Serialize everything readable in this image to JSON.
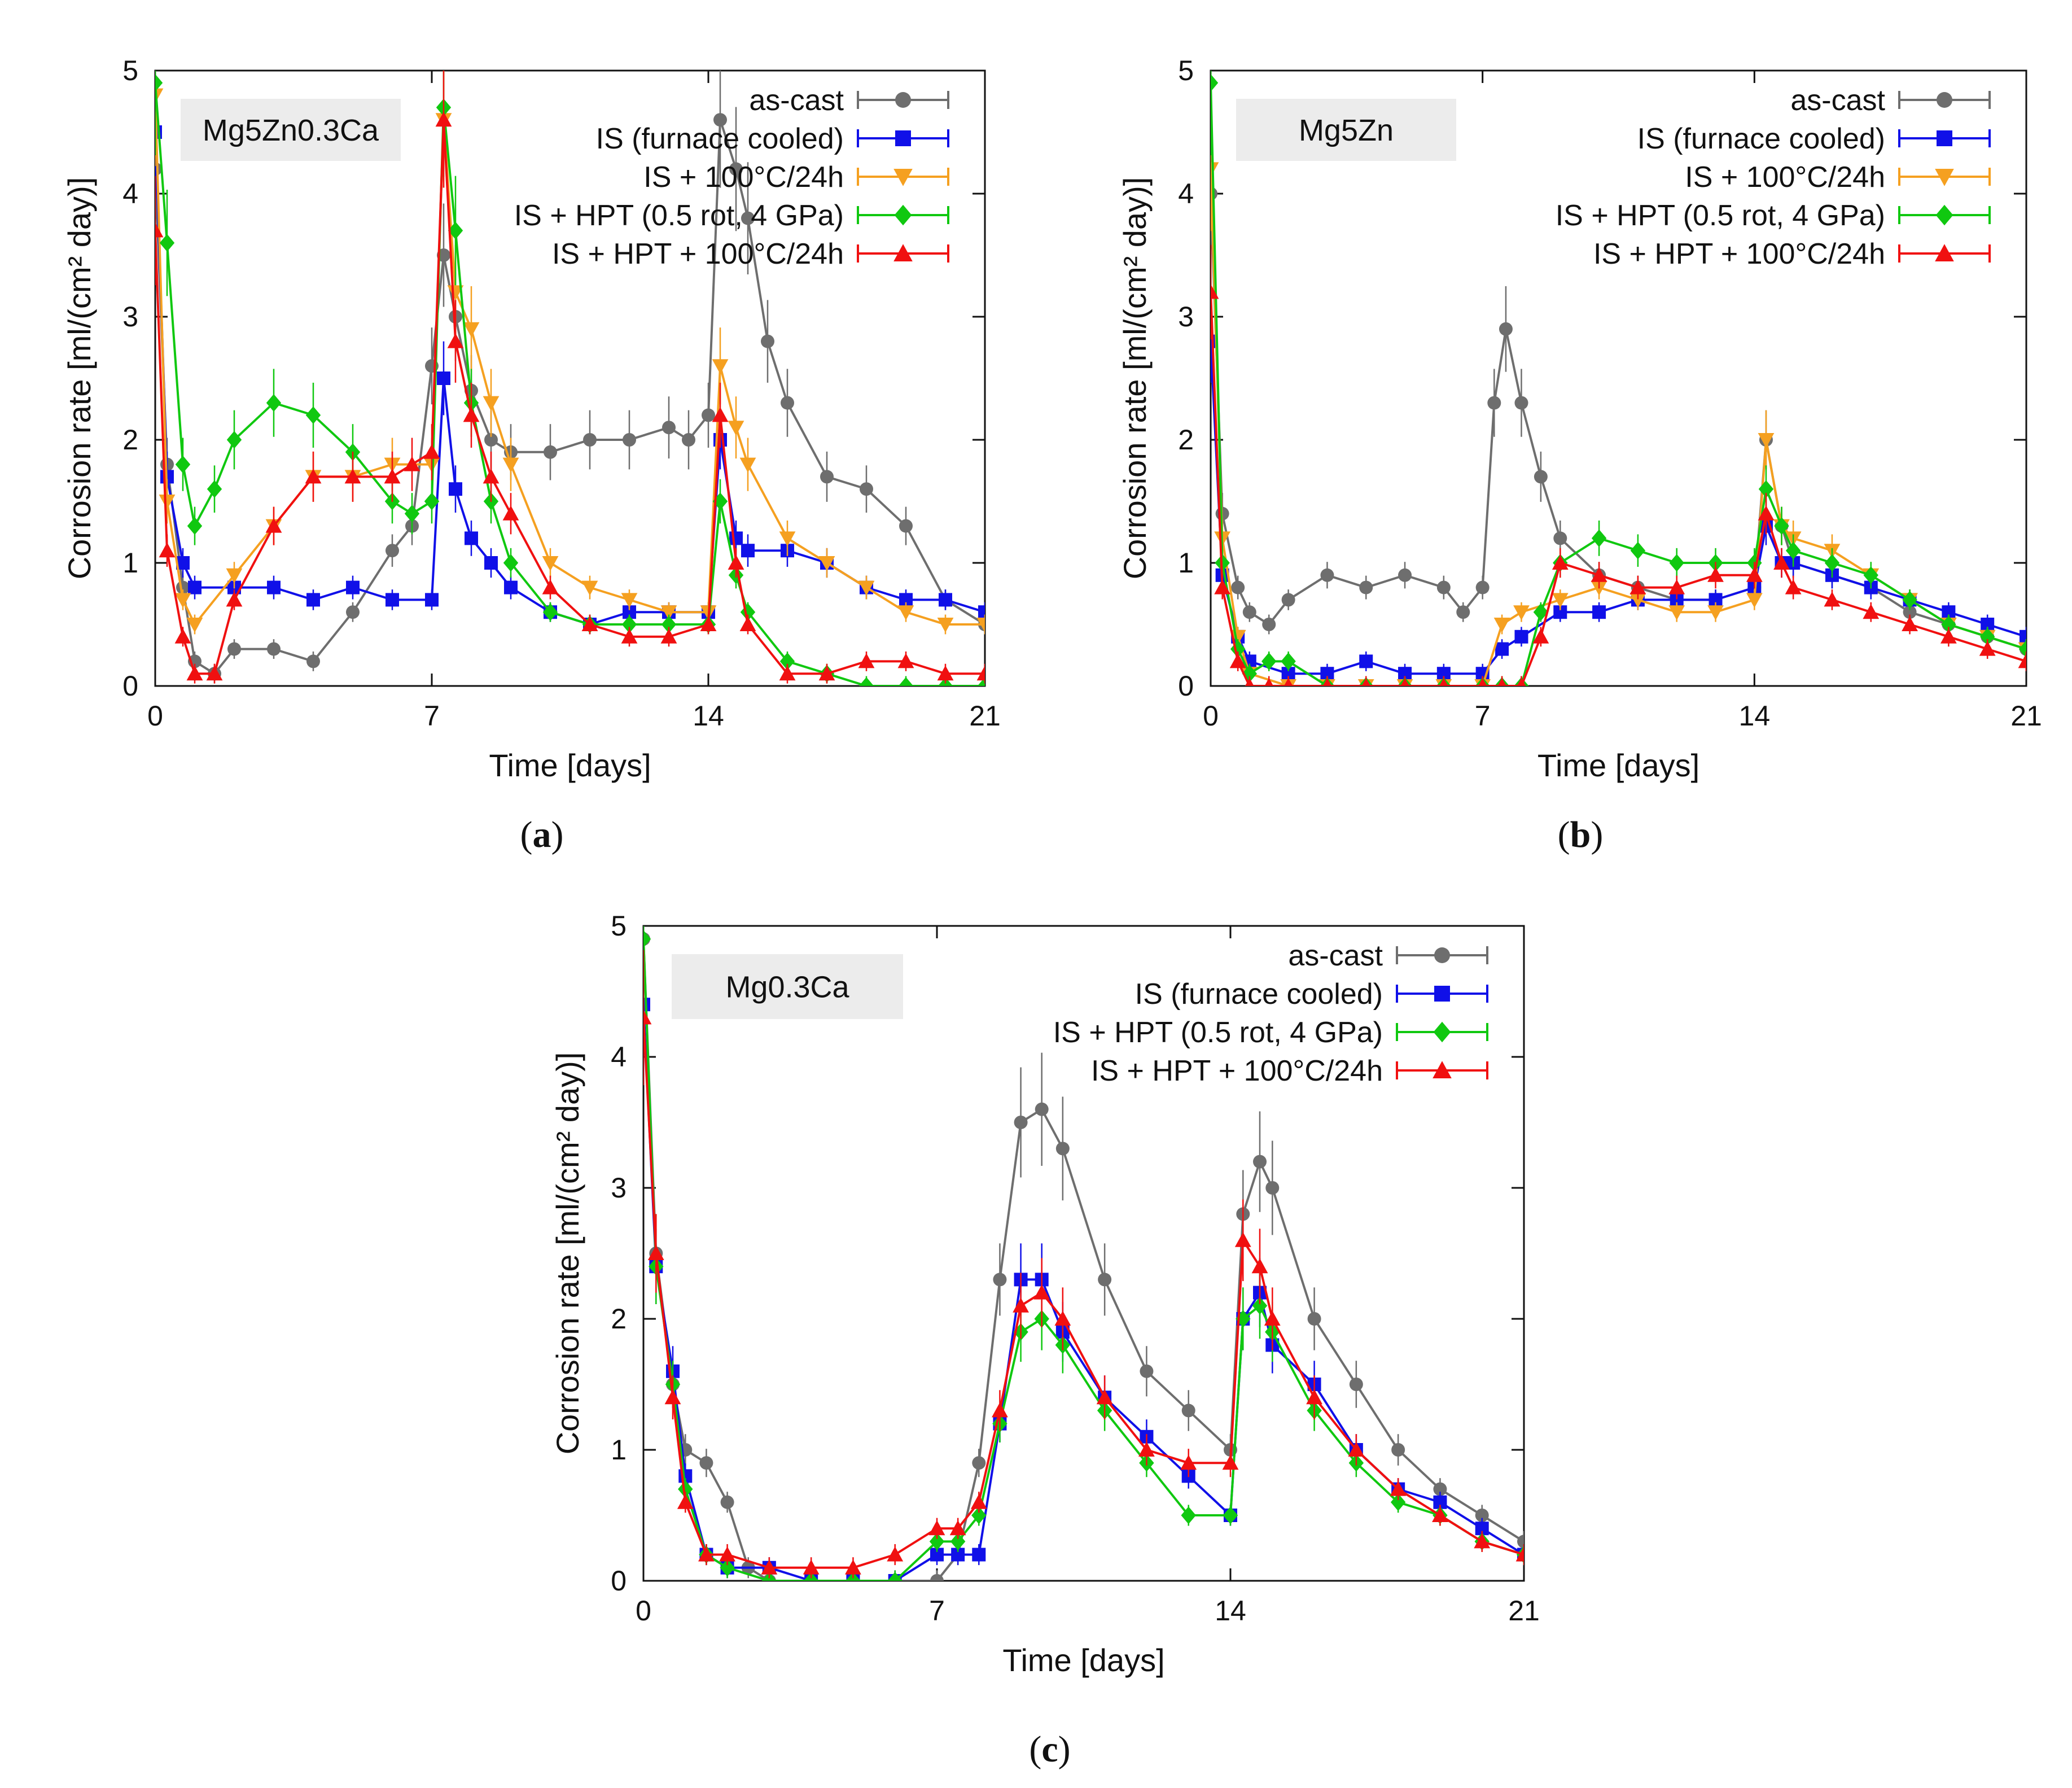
{
  "figure": {
    "panels": [
      "a",
      "b",
      "c"
    ]
  },
  "chart_data": [
    {
      "panel": "a",
      "caption": "a",
      "type": "line",
      "alloy_label": "Mg5Zn0.3Ca",
      "xlabel": "Time [days]",
      "ylabel": "Corrosion rate [ml/(cm² day)]",
      "xlim": [
        0,
        21
      ],
      "ylim": [
        0,
        5
      ],
      "xticks": [
        0,
        7,
        14,
        21
      ],
      "yticks": [
        0,
        1,
        2,
        3,
        4,
        5
      ],
      "legend_position": "top-right",
      "series": [
        {
          "name": "as-cast",
          "color": "#6e6e6e",
          "marker": "circle",
          "x": [
            0,
            0.3,
            0.7,
            1,
            1.5,
            2,
            3,
            4,
            5,
            6,
            6.5,
            7,
            7.3,
            7.6,
            8,
            8.5,
            9,
            10,
            11,
            12,
            13,
            13.5,
            14,
            14.3,
            14.7,
            15,
            15.5,
            16,
            17,
            18,
            19,
            20,
            21
          ],
          "y": [
            4.2,
            1.8,
            0.8,
            0.2,
            0.1,
            0.3,
            0.3,
            0.2,
            0.6,
            1.1,
            1.3,
            2.6,
            3.5,
            3.0,
            2.4,
            2.0,
            1.9,
            1.9,
            2.0,
            2.0,
            2.1,
            2.0,
            2.2,
            4.6,
            4.2,
            3.8,
            2.8,
            2.3,
            1.7,
            1.6,
            1.3,
            0.7,
            0.5
          ]
        },
        {
          "name": "IS (furnace cooled)",
          "color": "#1010e8",
          "marker": "square",
          "x": [
            0,
            0.3,
            0.7,
            1,
            2,
            3,
            4,
            5,
            6,
            7,
            7.3,
            7.6,
            8,
            8.5,
            9,
            10,
            11,
            12,
            13,
            14,
            14.3,
            14.7,
            15,
            16,
            17,
            18,
            19,
            20,
            21
          ],
          "y": [
            4.5,
            1.7,
            1.0,
            0.8,
            0.8,
            0.8,
            0.7,
            0.8,
            0.7,
            0.7,
            2.5,
            1.6,
            1.2,
            1.0,
            0.8,
            0.6,
            0.5,
            0.6,
            0.6,
            0.6,
            2.0,
            1.2,
            1.1,
            1.1,
            1.0,
            0.8,
            0.7,
            0.7,
            0.6
          ]
        },
        {
          "name": "IS + 100°C/24h",
          "color": "#f5a020",
          "marker": "triangle-down",
          "x": [
            0,
            0.3,
            0.7,
            1,
            2,
            3,
            4,
            5,
            6,
            7,
            7.3,
            7.6,
            8,
            8.5,
            9,
            10,
            11,
            12,
            13,
            14,
            14.3,
            14.7,
            15,
            16,
            17,
            18,
            19,
            20,
            21
          ],
          "y": [
            4.8,
            1.5,
            0.7,
            0.5,
            0.9,
            1.3,
            1.7,
            1.7,
            1.8,
            1.8,
            4.6,
            3.2,
            2.9,
            2.3,
            1.8,
            1.0,
            0.8,
            0.7,
            0.6,
            0.6,
            2.6,
            2.1,
            1.8,
            1.2,
            1.0,
            0.8,
            0.6,
            0.5,
            0.5
          ]
        },
        {
          "name": "IS + HPT (0.5 rot, 4 GPa)",
          "color": "#10c810",
          "marker": "diamond",
          "x": [
            0,
            0.3,
            0.7,
            1,
            1.5,
            2,
            3,
            4,
            5,
            6,
            6.5,
            7,
            7.3,
            7.6,
            8,
            8.5,
            9,
            10,
            11,
            12,
            13,
            14,
            14.3,
            14.7,
            15,
            16,
            17,
            18,
            19,
            20,
            21
          ],
          "y": [
            4.9,
            3.6,
            1.8,
            1.3,
            1.6,
            2.0,
            2.3,
            2.2,
            1.9,
            1.5,
            1.4,
            1.5,
            4.7,
            3.7,
            2.3,
            1.5,
            1.0,
            0.6,
            0.5,
            0.5,
            0.5,
            0.5,
            1.5,
            0.9,
            0.6,
            0.2,
            0.1,
            0.0,
            0.0,
            0.0,
            0.0
          ]
        },
        {
          "name": "IS + HPT + 100°C/24h",
          "color": "#f01010",
          "marker": "triangle-up",
          "x": [
            0,
            0.3,
            0.7,
            1,
            1.5,
            2,
            3,
            4,
            5,
            6,
            6.5,
            7,
            7.3,
            7.6,
            8,
            8.5,
            9,
            10,
            11,
            12,
            13,
            14,
            14.3,
            14.7,
            15,
            16,
            17,
            18,
            19,
            20,
            21
          ],
          "y": [
            3.7,
            1.1,
            0.4,
            0.1,
            0.1,
            0.7,
            1.3,
            1.7,
            1.7,
            1.7,
            1.8,
            1.9,
            4.6,
            2.8,
            2.2,
            1.7,
            1.4,
            0.8,
            0.5,
            0.4,
            0.4,
            0.5,
            2.2,
            1.0,
            0.5,
            0.1,
            0.1,
            0.2,
            0.2,
            0.1,
            0.1
          ]
        }
      ]
    },
    {
      "panel": "b",
      "caption": "b",
      "type": "line",
      "alloy_label": "Mg5Zn",
      "xlabel": "Time [days]",
      "ylabel": "Corrosion rate [ml/(cm² day)]",
      "xlim": [
        0,
        21
      ],
      "ylim": [
        0,
        5
      ],
      "xticks": [
        0,
        7,
        14,
        21
      ],
      "yticks": [
        0,
        1,
        2,
        3,
        4,
        5
      ],
      "legend_position": "top-right",
      "series": [
        {
          "name": "as-cast",
          "color": "#6e6e6e",
          "marker": "circle",
          "x": [
            0,
            0.3,
            0.7,
            1,
            1.5,
            2,
            3,
            4,
            5,
            6,
            6.5,
            7,
            7.3,
            7.6,
            8,
            8.5,
            9,
            10,
            11,
            12,
            13,
            14,
            14.3,
            14.7,
            15,
            16,
            17,
            18,
            19,
            20,
            21
          ],
          "y": [
            4.0,
            1.4,
            0.8,
            0.6,
            0.5,
            0.7,
            0.9,
            0.8,
            0.9,
            0.8,
            0.6,
            0.8,
            2.3,
            2.9,
            2.3,
            1.7,
            1.2,
            0.9,
            0.8,
            0.7,
            0.7,
            0.8,
            2.0,
            1.3,
            1.0,
            0.9,
            0.8,
            0.6,
            0.5,
            0.4,
            0.3
          ]
        },
        {
          "name": "IS (furnace cooled)",
          "color": "#1010e8",
          "marker": "square",
          "x": [
            0,
            0.3,
            0.7,
            1,
            2,
            3,
            4,
            5,
            6,
            7,
            7.5,
            8,
            9,
            10,
            11,
            12,
            13,
            14,
            14.3,
            14.7,
            15,
            16,
            17,
            18,
            19,
            20,
            21
          ],
          "y": [
            2.8,
            0.9,
            0.4,
            0.2,
            0.1,
            0.1,
            0.2,
            0.1,
            0.1,
            0.1,
            0.3,
            0.4,
            0.6,
            0.6,
            0.7,
            0.7,
            0.7,
            0.8,
            1.3,
            1.0,
            1.0,
            0.9,
            0.8,
            0.7,
            0.6,
            0.5,
            0.4
          ]
        },
        {
          "name": "IS + 100°C/24h",
          "color": "#f5a020",
          "marker": "triangle-down",
          "x": [
            0,
            0.3,
            0.7,
            1,
            2,
            3,
            4,
            5,
            6,
            7,
            7.5,
            8,
            9,
            10,
            11,
            12,
            13,
            14,
            14.3,
            14.7,
            15,
            16,
            17,
            18,
            19,
            20,
            21
          ],
          "y": [
            4.2,
            1.2,
            0.4,
            0.1,
            0.0,
            0.0,
            0.0,
            0.0,
            0.0,
            0.0,
            0.5,
            0.6,
            0.7,
            0.8,
            0.7,
            0.6,
            0.6,
            0.7,
            2.0,
            1.3,
            1.2,
            1.1,
            0.9,
            0.7,
            0.5,
            0.4,
            0.3
          ]
        },
        {
          "name": "IS + HPT (0.5 rot, 4 GPa)",
          "color": "#10c810",
          "marker": "diamond",
          "x": [
            0,
            0.3,
            0.7,
            1,
            1.5,
            2,
            3,
            4,
            5,
            6,
            7,
            7.5,
            8,
            8.5,
            9,
            10,
            11,
            12,
            13,
            14,
            14.3,
            14.7,
            15,
            16,
            17,
            18,
            19,
            20,
            21
          ],
          "y": [
            4.9,
            1.0,
            0.3,
            0.1,
            0.2,
            0.2,
            0.0,
            0.0,
            0.0,
            0.0,
            0.0,
            0.0,
            0.0,
            0.6,
            1.0,
            1.2,
            1.1,
            1.0,
            1.0,
            1.0,
            1.6,
            1.3,
            1.1,
            1.0,
            0.9,
            0.7,
            0.5,
            0.4,
            0.3
          ]
        },
        {
          "name": "IS + HPT + 100°C/24h",
          "color": "#f01010",
          "marker": "triangle-up",
          "x": [
            0,
            0.3,
            0.7,
            1,
            1.5,
            2,
            3,
            4,
            5,
            6,
            7,
            7.5,
            8,
            8.5,
            9,
            10,
            11,
            12,
            13,
            14,
            14.3,
            14.7,
            15,
            16,
            17,
            18,
            19,
            20,
            21
          ],
          "y": [
            3.2,
            0.8,
            0.2,
            0.0,
            0.0,
            0.0,
            0.0,
            0.0,
            0.0,
            0.0,
            0.0,
            0.0,
            0.0,
            0.4,
            1.0,
            0.9,
            0.8,
            0.8,
            0.9,
            0.9,
            1.4,
            1.0,
            0.8,
            0.7,
            0.6,
            0.5,
            0.4,
            0.3,
            0.2
          ]
        }
      ]
    },
    {
      "panel": "c",
      "caption": "c",
      "type": "line",
      "alloy_label": "Mg0.3Ca",
      "xlabel": "Time [days]",
      "ylabel": "Corrosion rate [ml/(cm² day)]",
      "xlim": [
        0,
        21
      ],
      "ylim": [
        0,
        5
      ],
      "xticks": [
        0,
        7,
        14,
        21
      ],
      "yticks": [
        0,
        1,
        2,
        3,
        4,
        5
      ],
      "legend_position": "top-right",
      "series": [
        {
          "name": "as-cast",
          "color": "#6e6e6e",
          "marker": "circle",
          "x": [
            0,
            0.3,
            0.7,
            1,
            1.5,
            2,
            2.5,
            3,
            4,
            5,
            6,
            7,
            7.5,
            8,
            8.5,
            9,
            9.5,
            10,
            11,
            12,
            13,
            14,
            14.3,
            14.7,
            15,
            16,
            17,
            18,
            19,
            20,
            21
          ],
          "y": [
            4.9,
            2.5,
            1.5,
            1.0,
            0.9,
            0.6,
            0.1,
            0.0,
            0.0,
            0.0,
            0.0,
            0.0,
            0.2,
            0.9,
            2.3,
            3.5,
            3.6,
            3.3,
            2.3,
            1.6,
            1.3,
            1.0,
            2.8,
            3.2,
            3.0,
            2.0,
            1.5,
            1.0,
            0.7,
            0.5,
            0.3
          ]
        },
        {
          "name": "IS (furnace cooled)",
          "color": "#1010e8",
          "marker": "square",
          "x": [
            0,
            0.3,
            0.7,
            1,
            1.5,
            2,
            3,
            4,
            5,
            6,
            7,
            7.5,
            8,
            8.5,
            9,
            9.5,
            10,
            11,
            12,
            13,
            14,
            14.3,
            14.7,
            15,
            16,
            17,
            18,
            19,
            20,
            21
          ],
          "y": [
            4.4,
            2.4,
            1.6,
            0.8,
            0.2,
            0.1,
            0.1,
            0.0,
            0.0,
            0.0,
            0.2,
            0.2,
            0.2,
            1.2,
            2.3,
            2.3,
            1.9,
            1.4,
            1.1,
            0.8,
            0.5,
            2.0,
            2.2,
            1.8,
            1.5,
            1.0,
            0.7,
            0.6,
            0.4,
            0.2
          ]
        },
        {
          "name": "IS + HPT (0.5 rot, 4 GPa)",
          "color": "#10c810",
          "marker": "diamond",
          "x": [
            0,
            0.3,
            0.7,
            1,
            1.5,
            2,
            3,
            4,
            5,
            6,
            7,
            7.5,
            8,
            8.5,
            9,
            9.5,
            10,
            11,
            12,
            13,
            14,
            14.3,
            14.7,
            15,
            16,
            17,
            18,
            19,
            20,
            21
          ],
          "y": [
            4.9,
            2.4,
            1.5,
            0.7,
            0.2,
            0.1,
            0.0,
            0.0,
            0.0,
            0.0,
            0.3,
            0.3,
            0.5,
            1.2,
            1.9,
            2.0,
            1.8,
            1.3,
            0.9,
            0.5,
            0.5,
            2.0,
            2.1,
            1.9,
            1.3,
            0.9,
            0.6,
            0.5,
            0.3,
            0.2
          ]
        },
        {
          "name": "IS + HPT + 100°C/24h",
          "color": "#f01010",
          "marker": "triangle-up",
          "x": [
            0,
            0.3,
            0.7,
            1,
            1.5,
            2,
            3,
            4,
            5,
            6,
            7,
            7.5,
            8,
            8.5,
            9,
            9.5,
            10,
            11,
            12,
            13,
            14,
            14.3,
            14.7,
            15,
            16,
            17,
            18,
            19,
            20,
            21
          ],
          "y": [
            4.3,
            2.5,
            1.4,
            0.6,
            0.2,
            0.2,
            0.1,
            0.1,
            0.1,
            0.2,
            0.4,
            0.4,
            0.6,
            1.3,
            2.1,
            2.2,
            2.0,
            1.4,
            1.0,
            0.9,
            0.9,
            2.6,
            2.4,
            2.0,
            1.4,
            1.0,
            0.7,
            0.5,
            0.3,
            0.2
          ]
        }
      ]
    }
  ]
}
